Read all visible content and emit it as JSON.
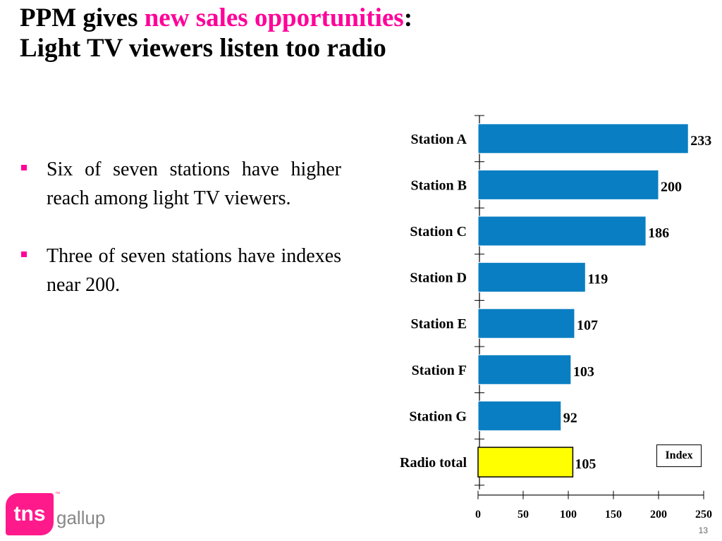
{
  "title": {
    "line1_prefix": "PPM gives ",
    "line1_highlight": "new sales opportunities",
    "line1_suffix": ":",
    "line2": "Light TV viewers listen too radio"
  },
  "bullets": [
    "Six of seven stations have higher reach among light TV viewers.",
    "Three of seven stations have indexes near 200."
  ],
  "colors": {
    "accent": "#ff0099",
    "bar": "#0a7ec2",
    "bar_highlight": "#ffff00"
  },
  "chart_data": {
    "type": "bar",
    "orientation": "horizontal",
    "categories": [
      "Station A",
      "Station B",
      "Station C",
      "Station D",
      "Station E",
      "Station F",
      "Station G",
      "Radio total"
    ],
    "values": [
      233,
      200,
      186,
      119,
      107,
      103,
      92,
      105
    ],
    "value_labels": [
      "233",
      "200",
      "186",
      "119",
      "107",
      "103",
      "92",
      "105"
    ],
    "highlight_category": "Radio total",
    "xlim": [
      0,
      250
    ],
    "xticks": [
      "0",
      "50",
      "100",
      "150",
      "200",
      "250"
    ],
    "grid": false,
    "legend": {
      "label": "Index",
      "placement": "bottom-right"
    }
  },
  "logo": {
    "badge": "tns",
    "word": "gallup",
    "tm": "™"
  },
  "page_number": "13"
}
